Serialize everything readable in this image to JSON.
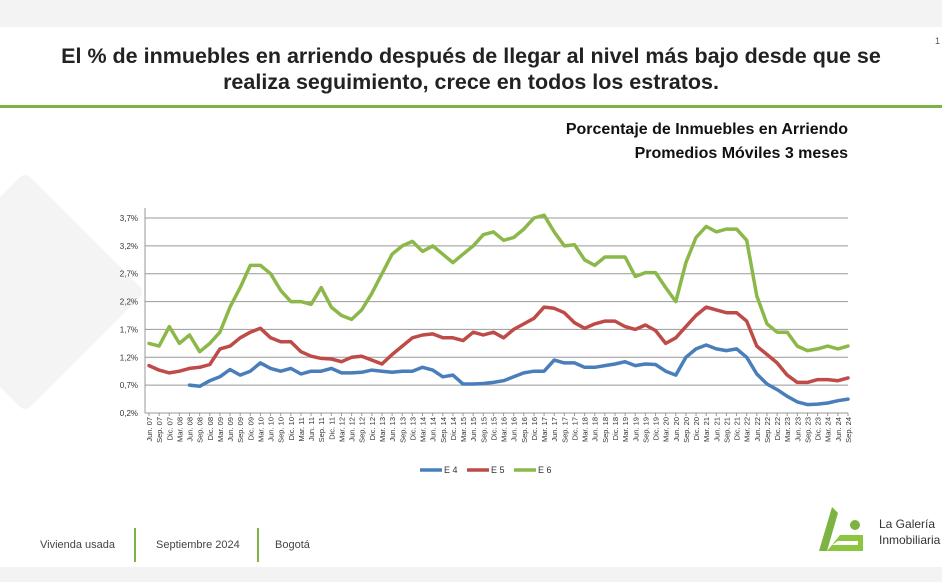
{
  "slide": {
    "title_line1": "El % de inmuebles en arriendo después de llegar al nivel más bajo desde que se",
    "title_line2": "realiza seguimiento, crece en todos los estratos.",
    "page_number": "1",
    "accent_color": "#7cb342"
  },
  "footer": {
    "item1": "Vivienda usada",
    "item2": "Septiembre 2024",
    "item3": "Bogotá",
    "logo_line1": "La Galería",
    "logo_line2": "Inmobiliaria"
  },
  "chart_data": {
    "type": "line",
    "title": "Porcentaje de Inmuebles en Arriendo",
    "subtitle": "Promedios Móviles 3 meses",
    "xlabel": "",
    "ylabel": "",
    "ylim": [
      0.2,
      3.7
    ],
    "yticks": [
      "0,2%",
      "0,7%",
      "1,2%",
      "1,7%",
      "2,2%",
      "2,7%",
      "3,2%",
      "3,7%"
    ],
    "ytick_values": [
      0.2,
      0.7,
      1.2,
      1.7,
      2.2,
      2.7,
      3.2,
      3.7
    ],
    "grid": true,
    "legend": "bottom",
    "categories": [
      "Jun. 07",
      "Sep. 07",
      "Dic. 07",
      "Mar. 08",
      "Jun. 08",
      "Sep. 08",
      "Dic. 08",
      "Mar. 09",
      "Jun. 09",
      "Sep. 09",
      "Dic. 09",
      "Mar. 10",
      "Jun. 10",
      "Sep. 10",
      "Dic. 10",
      "Mar. 11",
      "Jun. 11",
      "Sep. 11",
      "Dic. 11",
      "Mar. 12",
      "Jun. 12",
      "Sep. 12",
      "Dic. 12",
      "Mar. 13",
      "Jun. 13",
      "Sep. 13",
      "Dic. 13",
      "Mar. 14",
      "Jun. 14",
      "Sep. 14",
      "Dic. 14",
      "Mar. 15",
      "Jun. 15",
      "Sep. 15",
      "Dic. 15",
      "Mar. 16",
      "Jun. 16",
      "Sep. 16",
      "Dic. 16",
      "Mar. 17",
      "Jun. 17",
      "Sep. 17",
      "Dic. 17",
      "Mar. 18",
      "Jun. 18",
      "Sep. 18",
      "Dic. 18",
      "Mar. 19",
      "Jun. 19",
      "Sep. 19",
      "Dic. 19",
      "Mar. 20",
      "Jun. 20",
      "Sep. 20",
      "Dic. 20",
      "Mar. 21",
      "Jun. 21",
      "Sep. 21",
      "Dic. 21",
      "Mar. 22",
      "Jun. 22",
      "Sep. 22",
      "Dic. 22",
      "Mar. 23",
      "Jun. 23",
      "Sep. 23",
      "Dic. 23",
      "Mar. 24",
      "Jun. 24",
      "Sep. 24"
    ],
    "series": [
      {
        "name": "E 4",
        "color": "#4a7ebb",
        "values": [
          null,
          null,
          null,
          null,
          0.7,
          0.68,
          0.78,
          0.85,
          0.98,
          0.88,
          0.95,
          1.1,
          1.0,
          0.95,
          1.0,
          0.9,
          0.95,
          0.95,
          1.0,
          0.92,
          0.92,
          0.93,
          0.97,
          0.95,
          0.93,
          0.95,
          0.95,
          1.02,
          0.97,
          0.85,
          0.88,
          0.72,
          0.72,
          0.73,
          0.75,
          0.78,
          0.85,
          0.92,
          0.95,
          0.95,
          1.15,
          1.1,
          1.1,
          1.02,
          1.02,
          1.05,
          1.08,
          1.12,
          1.05,
          1.08,
          1.07,
          0.95,
          0.88,
          1.2,
          1.35,
          1.42,
          1.35,
          1.32,
          1.35,
          1.2,
          0.9,
          0.72,
          0.62,
          0.5,
          0.4,
          0.35,
          0.36,
          0.38,
          0.42,
          0.45
        ]
      },
      {
        "name": "E 5",
        "color": "#be4b48",
        "values": [
          1.05,
          0.97,
          0.92,
          0.95,
          1.0,
          1.02,
          1.07,
          1.35,
          1.4,
          1.55,
          1.65,
          1.72,
          1.55,
          1.48,
          1.48,
          1.3,
          1.22,
          1.18,
          1.17,
          1.12,
          1.2,
          1.22,
          1.15,
          1.08,
          1.25,
          1.4,
          1.55,
          1.6,
          1.62,
          1.55,
          1.55,
          1.5,
          1.65,
          1.6,
          1.65,
          1.55,
          1.7,
          1.8,
          1.9,
          2.1,
          2.08,
          2.0,
          1.82,
          1.72,
          1.8,
          1.85,
          1.85,
          1.75,
          1.7,
          1.78,
          1.68,
          1.45,
          1.55,
          1.75,
          1.95,
          2.1,
          2.05,
          2.0,
          2.0,
          1.85,
          1.4,
          1.25,
          1.1,
          0.88,
          0.75,
          0.75,
          0.8,
          0.8,
          0.78,
          0.83
        ]
      },
      {
        "name": "E 6",
        "color": "#8cb84a",
        "values": [
          1.45,
          1.4,
          1.75,
          1.45,
          1.6,
          1.3,
          1.45,
          1.65,
          2.1,
          2.45,
          2.85,
          2.85,
          2.7,
          2.4,
          2.2,
          2.2,
          2.15,
          2.45,
          2.1,
          1.95,
          1.88,
          2.05,
          2.35,
          2.7,
          3.05,
          3.2,
          3.28,
          3.1,
          3.2,
          3.05,
          2.9,
          3.05,
          3.2,
          3.4,
          3.45,
          3.3,
          3.35,
          3.5,
          3.7,
          3.75,
          3.45,
          3.2,
          3.22,
          2.95,
          2.85,
          3.0,
          3.0,
          3.0,
          2.65,
          2.72,
          2.72,
          2.45,
          2.2,
          2.9,
          3.35,
          3.55,
          3.45,
          3.5,
          3.5,
          3.3,
          2.3,
          1.8,
          1.65,
          1.65,
          1.4,
          1.32,
          1.35,
          1.4,
          1.35,
          1.4
        ]
      }
    ]
  }
}
